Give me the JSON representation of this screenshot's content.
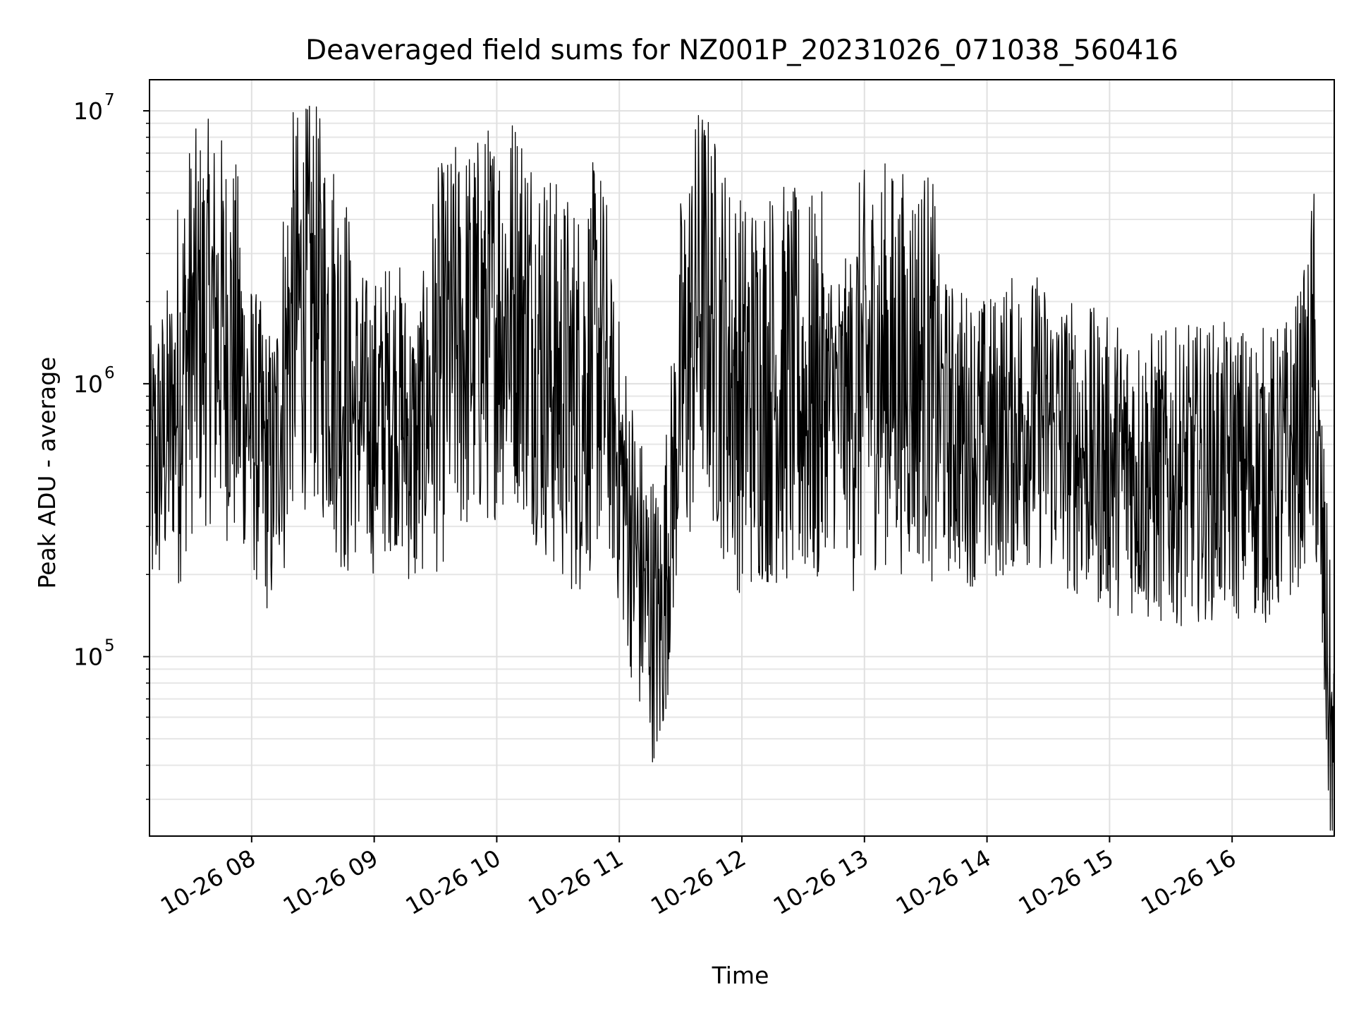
{
  "chart_data": {
    "type": "line",
    "title": "Deaveraged field sums for NZ001P_20231026_071038_560416",
    "xlabel": "Time",
    "ylabel": "Peak ADU - average",
    "yscale": "log",
    "grid": true,
    "line_color": "#000000",
    "xlim": [
      "2023-10-26 07:10",
      "2023-10-26 16:50"
    ],
    "ylim": [
      22000,
      13000000
    ],
    "x_ticks": [
      "10-26 08",
      "10-26 09",
      "10-26 10",
      "10-26 11",
      "10-26 12",
      "10-26 13",
      "10-26 14",
      "10-26 15",
      "10-26 16"
    ],
    "y_ticks": [
      {
        "base": "10",
        "exp": "5",
        "value": 100000
      },
      {
        "base": "10",
        "exp": "6",
        "value": 1000000
      },
      {
        "base": "10",
        "exp": "7",
        "value": 10000000
      }
    ],
    "series": [
      {
        "x": [
          "07:10",
          "07:20",
          "07:30",
          "07:40",
          "07:50",
          "08:00",
          "08:10",
          "08:20",
          "08:30",
          "08:40",
          "08:50",
          "09:00",
          "09:10",
          "09:20",
          "09:30",
          "09:40",
          "09:50",
          "10:00",
          "10:10",
          "10:20",
          "10:30",
          "10:40",
          "10:50",
          "11:00",
          "11:10",
          "11:20",
          "11:30",
          "11:40",
          "11:50",
          "12:00",
          "12:10",
          "12:20",
          "12:30",
          "12:40",
          "12:50",
          "13:00",
          "13:10",
          "13:20",
          "13:30",
          "13:40",
          "13:50",
          "14:00",
          "14:10",
          "14:20",
          "14:30",
          "14:40",
          "14:50",
          "15:00",
          "15:10",
          "15:20",
          "15:30",
          "15:40",
          "15:50",
          "16:00",
          "16:10",
          "16:20",
          "16:30",
          "16:40",
          "16:50"
        ],
        "y": [
          450000,
          700000,
          1500000,
          1700000,
          1400000,
          700000,
          450000,
          1800000,
          2000000,
          1400000,
          800000,
          700000,
          900000,
          550000,
          1100000,
          1400000,
          1500000,
          1800000,
          2000000,
          1400000,
          1000000,
          900000,
          1300000,
          500000,
          200000,
          120000,
          900000,
          2200000,
          1300000,
          900000,
          1000000,
          1000000,
          900000,
          900000,
          800000,
          1100000,
          1200000,
          1100000,
          1200000,
          700000,
          650000,
          600000,
          700000,
          750000,
          700000,
          600000,
          550000,
          500000,
          500000,
          450000,
          450000,
          470000,
          480000,
          470000,
          480000,
          450000,
          550000,
          1000000,
          30000
        ]
      }
    ]
  }
}
